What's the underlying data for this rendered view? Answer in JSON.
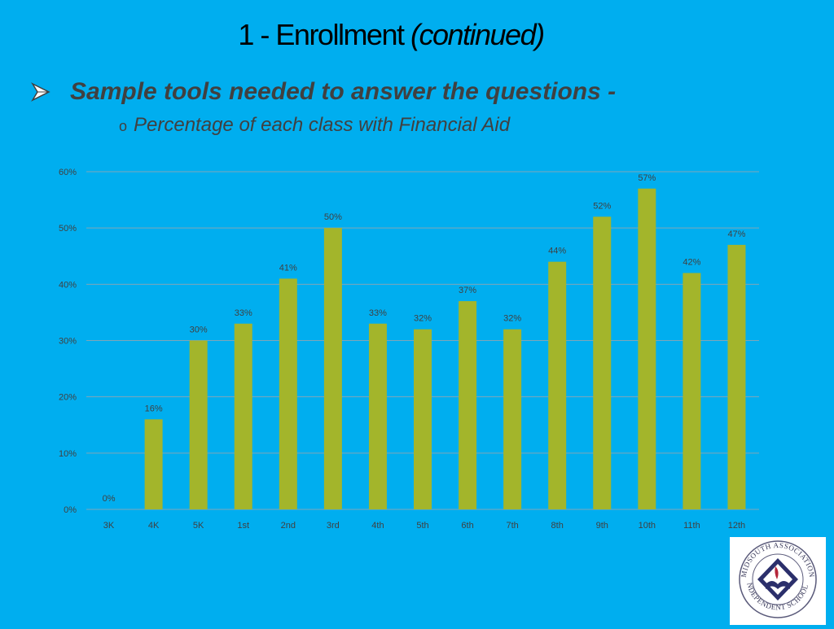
{
  "title": {
    "main": "1 - Enrollment ",
    "italic": "(continued)"
  },
  "bullet": {
    "heading": "Sample tools needed to answer the questions -",
    "sub": "Percentage of each class with Financial Aid"
  },
  "logo": {
    "text": "MIDSOUTH ASSOCIATION INDEPENDENT SCHOOLS"
  },
  "colors": {
    "background": "#00aeef",
    "bar": "#a3b52b",
    "grid": "#7fa6b8",
    "text": "#404040"
  },
  "chart_data": {
    "type": "bar",
    "categories": [
      "3K",
      "4K",
      "5K",
      "1st",
      "2nd",
      "3rd",
      "4th",
      "5th",
      "6th",
      "7th",
      "8th",
      "9th",
      "10th",
      "11th",
      "12th"
    ],
    "values": [
      0,
      16,
      30,
      33,
      41,
      50,
      33,
      32,
      37,
      32,
      44,
      52,
      57,
      42,
      47
    ],
    "data_labels": [
      "0%",
      "16%",
      "30%",
      "33%",
      "41%",
      "50%",
      "33%",
      "32%",
      "37%",
      "32%",
      "44%",
      "52%",
      "57%",
      "42%",
      "47%"
    ],
    "yticks": [
      "0%",
      "10%",
      "20%",
      "30%",
      "40%",
      "50%",
      "60%"
    ],
    "ylim": [
      0,
      60
    ],
    "grid": true,
    "legend": "none"
  }
}
